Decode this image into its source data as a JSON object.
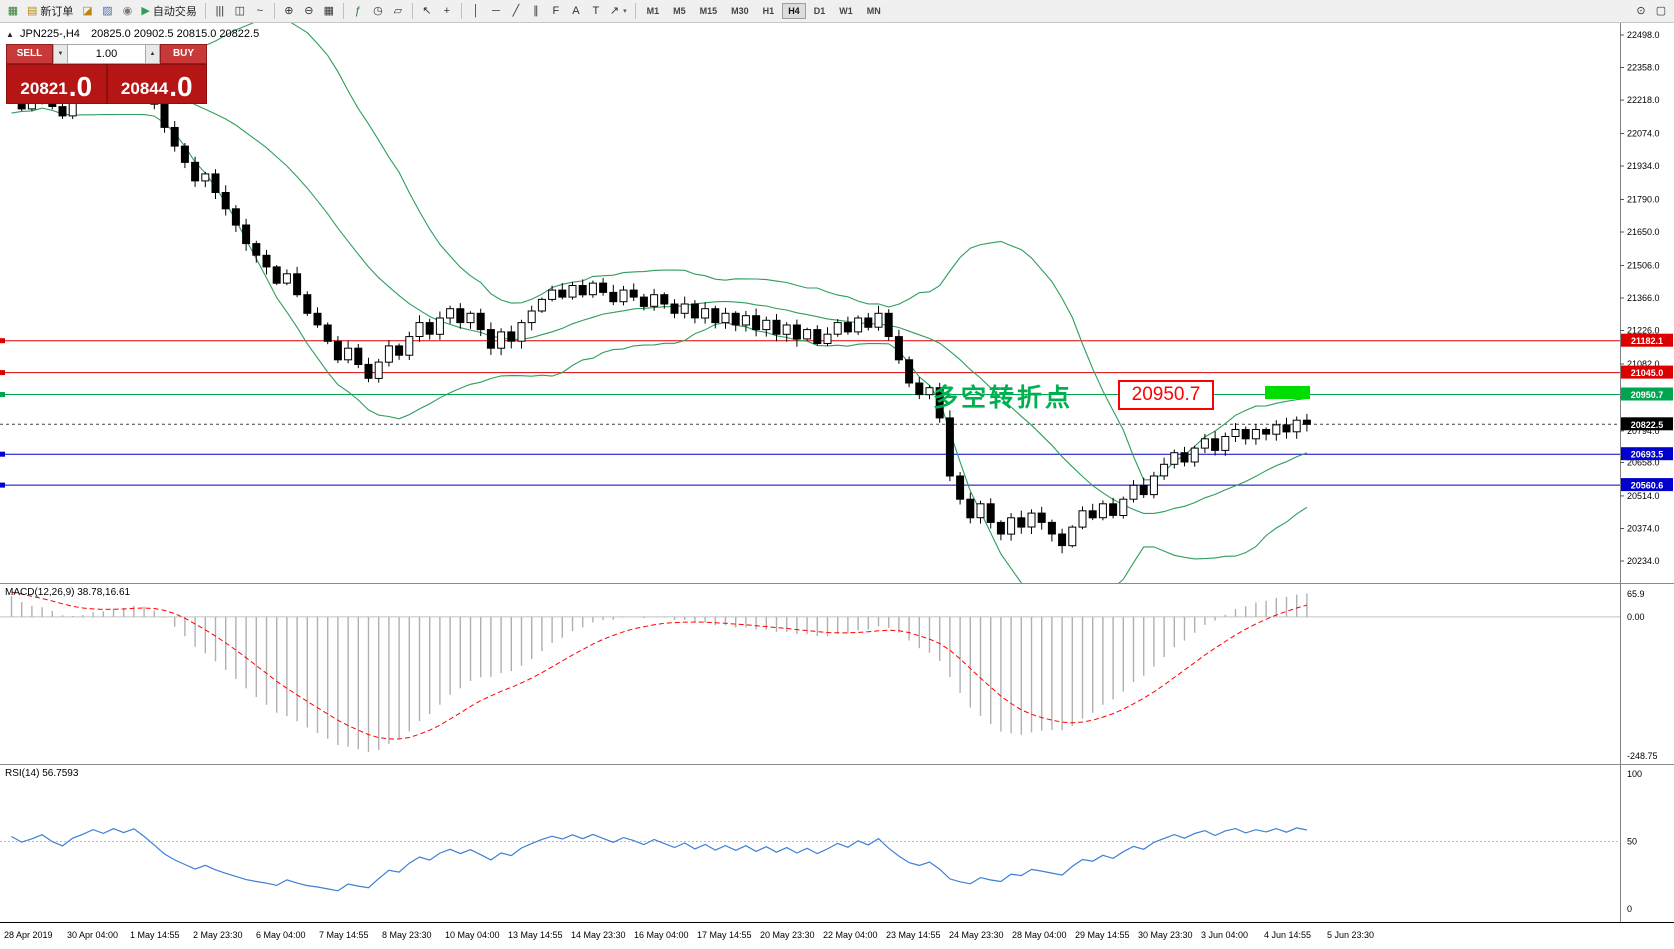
{
  "app": {
    "background": "#ffffff",
    "toolbar_bg": "#f0f0f0"
  },
  "toolbar": {
    "items": [
      {
        "type": "btn",
        "name": "app-icon",
        "glyph": "▦",
        "color": "#2e7d32"
      },
      {
        "type": "btn",
        "name": "new-order-button",
        "glyph": "▤",
        "label": "新订单",
        "color": "#b8860b"
      },
      {
        "type": "btn",
        "name": "open-chart-icon",
        "glyph": "◪",
        "color": "#b8860b"
      },
      {
        "type": "btn",
        "name": "profiles-icon",
        "glyph": "▨",
        "color": "#4a6fb5"
      },
      {
        "type": "btn",
        "name": "strategy-tester-icon",
        "glyph": "◉",
        "color": "#7a7a7a"
      },
      {
        "type": "btn",
        "name": "autotrading-button",
        "glyph": "▶",
        "label": "自动交易",
        "color": "#2e9e5b"
      },
      {
        "type": "sep"
      },
      {
        "type": "btn",
        "name": "bar-chart-type-icon",
        "glyph": "|||",
        "color": "#333333"
      },
      {
        "type": "btn",
        "name": "candlestick-chart-type-icon",
        "glyph": "◫",
        "color": "#333333"
      },
      {
        "type": "btn",
        "name": "line-chart-type-icon",
        "glyph": "~",
        "color": "#333333"
      },
      {
        "type": "sep"
      },
      {
        "type": "btn",
        "name": "zoom-in-icon",
        "glyph": "⊕",
        "color": "#333333"
      },
      {
        "type": "btn",
        "name": "zoom-out-icon",
        "glyph": "⊖",
        "color": "#333333"
      },
      {
        "type": "btn",
        "name": "tile-windows-icon",
        "glyph": "▦",
        "color": "#333333"
      },
      {
        "type": "sep"
      },
      {
        "type": "btn",
        "name": "indicators-icon",
        "glyph": "ƒ",
        "color": "#2e7d32"
      },
      {
        "type": "btn",
        "name": "periods-icon",
        "glyph": "◷",
        "color": "#333333"
      },
      {
        "type": "btn",
        "name": "templates-icon",
        "glyph": "▱",
        "color": "#333333"
      },
      {
        "type": "sep"
      },
      {
        "type": "btn",
        "name": "cursor-icon",
        "glyph": "↖",
        "color": "#333333"
      },
      {
        "type": "btn",
        "name": "crosshair-icon",
        "glyph": "+",
        "color": "#333333"
      },
      {
        "type": "sep"
      },
      {
        "type": "btn",
        "name": "vertical-line-icon",
        "glyph": "│",
        "color": "#333333"
      },
      {
        "type": "btn",
        "name": "horizontal-line-icon",
        "glyph": "─",
        "color": "#333333"
      },
      {
        "type": "btn",
        "name": "trendline-icon",
        "glyph": "╱",
        "color": "#333333"
      },
      {
        "type": "btn",
        "name": "channel-icon",
        "glyph": "∥",
        "color": "#333333"
      },
      {
        "type": "btn",
        "name": "fibonacci-icon",
        "glyph": "F",
        "color": "#333333"
      },
      {
        "type": "btn",
        "name": "text-icon",
        "glyph": "A",
        "color": "#333333"
      },
      {
        "type": "btn",
        "name": "label-icon",
        "glyph": "T",
        "color": "#333333"
      },
      {
        "type": "btn",
        "name": "arrows-icon",
        "glyph": "↗",
        "color": "#333333",
        "dropdown": "▾"
      },
      {
        "type": "sep"
      }
    ],
    "timeframes": {
      "labels": [
        "M1",
        "M5",
        "M15",
        "M30",
        "H1",
        "H4",
        "D1",
        "W1",
        "MN"
      ],
      "active": "H4"
    },
    "right_items": [
      {
        "type": "btn",
        "name": "search-icon",
        "glyph": "⊙",
        "color": "#333333"
      },
      {
        "type": "btn",
        "name": "chat-icon",
        "glyph": "▢",
        "color": "#333333"
      }
    ]
  },
  "chart": {
    "title": {
      "marker": "▲",
      "symbol_period": "JPN225-,H4",
      "ohlc": "20825.0 20902.5 20815.0 20822.5"
    },
    "trade_panel": {
      "sell_label": "SELL",
      "buy_label": "BUY",
      "volume": "1.00",
      "spin_down": "▼",
      "spin_up": "▲",
      "sell_price_main": "20821",
      "sell_price_frac": ".0",
      "buy_price_main": "20844",
      "buy_price_frac": ".0"
    },
    "y_axis": {
      "min": 20234,
      "max": 22498,
      "ticks": [
        "22498.0",
        "22358.0",
        "22218.0",
        "22074.0",
        "21934.0",
        "21790.0",
        "21650.0",
        "21506.0",
        "21366.0",
        "21226.0",
        "21082.0",
        "20938.0",
        "20794.0",
        "20658.0",
        "20514.0",
        "20374.0",
        "20234.0"
      ]
    },
    "levels": [
      {
        "price": 21182.1,
        "label": "21182.1",
        "color": "#dd0000"
      },
      {
        "price": 21045.0,
        "label": "21045.0",
        "color": "#dd0000"
      },
      {
        "price": 20950.7,
        "label": "20950.7",
        "color": "#00a550"
      },
      {
        "price": 20693.5,
        "label": "20693.5",
        "color": "#0000cc"
      },
      {
        "price": 20560.6,
        "label": "20560.6",
        "color": "#0000cc"
      }
    ],
    "current_price": {
      "value": 20822.5,
      "label": "20822.5",
      "color": "#000000"
    },
    "annotations": {
      "pivot_text": "多空转折点",
      "pivot_text_color": "#00b050",
      "price_callout": "20950.7",
      "callout_color": "#ff0000",
      "highlight_color": "#00dd00"
    },
    "x_axis": {
      "labels": [
        "28 Apr 2019",
        "30 Apr 04:00",
        "1 May 14:55",
        "2 May 23:30",
        "6 May 04:00",
        "7 May 14:55",
        "8 May 23:30",
        "10 May 04:00",
        "13 May 14:55",
        "14 May 23:30",
        "16 May 04:00",
        "17 May 14:55",
        "20 May 23:30",
        "22 May 04:00",
        "23 May 14:55",
        "24 May 23:30",
        "28 May 04:00",
        "29 May 14:55",
        "30 May 23:30",
        "3 Jun 04:00",
        "4 Jun 14:55",
        "5 Jun 23:30"
      ]
    }
  },
  "chart_data": {
    "type": "candlestick",
    "symbol": "JPN225-",
    "timeframe": "H4",
    "closes": [
      22230,
      22180,
      22210,
      22250,
      22190,
      22150,
      22220,
      22260,
      22310,
      22280,
      22330,
      22300,
      22340,
      22280,
      22200,
      22100,
      22020,
      21950,
      21870,
      21900,
      21820,
      21750,
      21680,
      21600,
      21550,
      21500,
      21430,
      21470,
      21380,
      21300,
      21250,
      21180,
      21100,
      21150,
      21080,
      21020,
      21090,
      21160,
      21120,
      21200,
      21260,
      21210,
      21280,
      21320,
      21260,
      21300,
      21230,
      21150,
      21220,
      21180,
      21260,
      21310,
      21360,
      21400,
      21370,
      21420,
      21380,
      21430,
      21390,
      21350,
      21400,
      21370,
      21330,
      21380,
      21340,
      21300,
      21340,
      21280,
      21320,
      21260,
      21300,
      21250,
      21290,
      21230,
      21270,
      21210,
      21250,
      21190,
      21230,
      21170,
      21210,
      21260,
      21220,
      21280,
      21240,
      21300,
      21200,
      21100,
      21000,
      20950,
      20980,
      20850,
      20600,
      20500,
      20420,
      20480,
      20400,
      20350,
      20420,
      20380,
      20440,
      20400,
      20350,
      20300,
      20380,
      20450,
      20420,
      20480,
      20430,
      20500,
      20560,
      20520,
      20600,
      20650,
      20700,
      20660,
      20720,
      20760,
      20710,
      20770,
      20800,
      20760,
      20800,
      20780,
      20820,
      20790,
      20840,
      20822.5
    ],
    "overlays": [
      {
        "name": "Bollinger Bands",
        "color": "#2e9e5b"
      }
    ]
  },
  "macd_panel": {
    "label": "MACD(12,26,9) 38.78,16.61",
    "scale_top": "65.9",
    "scale_zero": "0.00",
    "scale_bottom": "-248.75",
    "histogram_color": "#b0b0b0",
    "signal_color": "#ff0000"
  },
  "rsi_panel": {
    "label": "RSI(14) 56.7593",
    "scale_top": "100",
    "scale_mid": "50",
    "scale_bottom": "0",
    "line_color": "#3d7fd6"
  }
}
